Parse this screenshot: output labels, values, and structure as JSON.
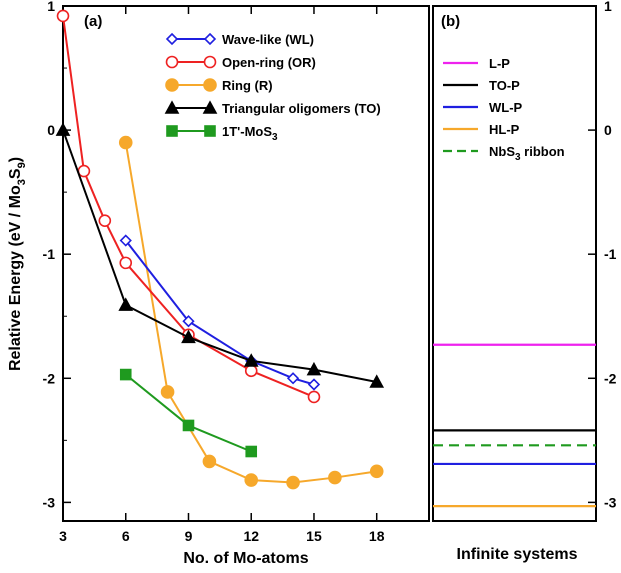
{
  "chart_data": [
    {
      "type": "line",
      "panel_label": "(a)",
      "xlabel": "No. of Mo-atoms",
      "ylabel": {
        "main": "Relative Energy (eV / Mo",
        "s1": "3",
        "mid": "S",
        "s2": "9",
        "end": ")"
      },
      "xlim": [
        3,
        20.5
      ],
      "ylim": [
        -3.15,
        1.0
      ],
      "xticks": [
        3,
        6,
        9,
        12,
        15,
        18
      ],
      "xtick_labels": [
        "3",
        "6",
        "9",
        "12",
        "15",
        "18"
      ],
      "yticks": [
        1,
        0,
        -1,
        -2,
        -3
      ],
      "ytick_labels": [
        "1",
        "0",
        "-1",
        "-2",
        "-3"
      ],
      "legend_position": "top-right",
      "series": [
        {
          "name": "Wave-like (WL)",
          "color": "#1f1fe0",
          "marker": "diamond-open",
          "x": [
            6,
            9,
            12,
            14,
            15
          ],
          "y": [
            -0.89,
            -1.54,
            -1.86,
            -2.0,
            -2.05
          ]
        },
        {
          "name": "Open-ring (OR)",
          "color": "#ee2222",
          "marker": "circle-open",
          "x": [
            3,
            4,
            5,
            6,
            9,
            12,
            15
          ],
          "y": [
            0.92,
            -0.33,
            -0.73,
            -1.07,
            -1.65,
            -1.94,
            -2.15
          ]
        },
        {
          "name": "Ring (R)",
          "color": "#f6a82b",
          "marker": "circle-filled",
          "x": [
            6,
            8,
            10,
            12,
            14,
            16,
            18
          ],
          "y": [
            -0.1,
            -2.11,
            -2.67,
            -2.82,
            -2.84,
            -2.8,
            -2.75
          ]
        },
        {
          "name": "Triangular oligomers (TO)",
          "color": "#000000",
          "marker": "triangle-filled",
          "x": [
            3,
            6,
            9,
            12,
            15,
            18
          ],
          "y": [
            0.0,
            -1.41,
            -1.67,
            -1.86,
            -1.93,
            -2.03
          ]
        },
        {
          "name": "1T'-MoS3",
          "name_parts": {
            "main": "1T'-MoS",
            "sub": "3"
          },
          "color": "#1f9a1f",
          "marker": "square-filled",
          "x": [
            6,
            9,
            12
          ],
          "y": [
            -1.97,
            -2.38,
            -2.59
          ]
        }
      ]
    },
    {
      "type": "line",
      "panel_label": "(b)",
      "xlabel": "Infinite systems",
      "ylim": [
        -3.15,
        1.0
      ],
      "yticks": [
        1,
        0,
        -1,
        -2,
        -3
      ],
      "ytick_labels": [
        "1",
        "0",
        "-1",
        "-2",
        "-3"
      ],
      "legend_position": "top-left",
      "series": [
        {
          "name": "L-P",
          "color": "#ee22ee",
          "style": "solid",
          "y": -1.73
        },
        {
          "name": "TO-P",
          "color": "#000000",
          "style": "solid",
          "y": -2.42
        },
        {
          "name": "WL-P",
          "color": "#1f1fe0",
          "style": "solid",
          "y": -2.69
        },
        {
          "name": "HL-P",
          "color": "#f6a82b",
          "style": "solid",
          "y": -3.03
        },
        {
          "name": "NbS3 ribbon",
          "name_parts": {
            "main": "NbS",
            "sub": "3",
            "end": " ribbon"
          },
          "color": "#1f9a1f",
          "style": "dashed",
          "y": -2.54
        }
      ]
    }
  ]
}
